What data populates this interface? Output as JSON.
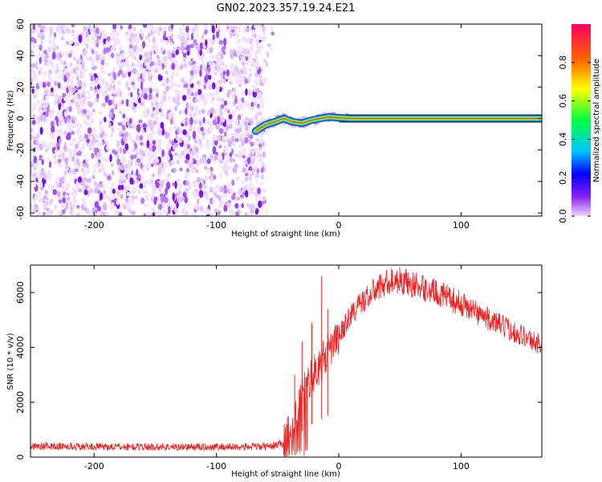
{
  "title": "GN02.2023.357.19.24.E21",
  "chart_data": [
    {
      "type": "heatmap",
      "xlabel": "Height of straight line (km)",
      "ylabel": "Frequency (Hz)",
      "xlim": [
        -252,
        166
      ],
      "ylim": [
        -62,
        60
      ],
      "xticks": [
        -200,
        -100,
        0,
        100
      ],
      "yticks": [
        -60,
        -40,
        -20,
        0,
        20,
        40,
        60
      ],
      "noise_region_x": [
        -252,
        -60
      ],
      "signal_track": [
        {
          "x": -68,
          "y": -8
        },
        {
          "x": -60,
          "y": -4
        },
        {
          "x": -52,
          "y": -2
        },
        {
          "x": -45,
          "y": 0
        },
        {
          "x": -38,
          "y": -2
        },
        {
          "x": -30,
          "y": -3
        },
        {
          "x": -22,
          "y": -1
        },
        {
          "x": -15,
          "y": 0
        },
        {
          "x": -8,
          "y": 1
        },
        {
          "x": 0,
          "y": 0.5
        },
        {
          "x": 10,
          "y": 0
        },
        {
          "x": 166,
          "y": 0
        }
      ],
      "colorbar": {
        "label": "Normalized spectral amplitude",
        "range": [
          0,
          1
        ],
        "ticks": [
          0.0,
          0.2,
          0.4,
          0.6,
          0.8
        ],
        "colors": [
          "#f0d8ff",
          "#7a00e0",
          "#0000ff",
          "#00d8ff",
          "#00ff40",
          "#ffff00",
          "#ff6000",
          "#ff0060"
        ]
      },
      "grid": false
    },
    {
      "type": "line",
      "xlabel": "Height of straight line (km)",
      "ylabel": "SNR (10 * v/v)",
      "xlim": [
        -252,
        166
      ],
      "ylim": [
        0,
        7000
      ],
      "xticks": [
        -200,
        -100,
        0,
        100
      ],
      "yticks": [
        0,
        2000,
        4000,
        6000
      ],
      "series_color": "#ee2222",
      "series": [
        {
          "x": [
            -252,
            -200,
            -150,
            -100,
            -60,
            -45,
            -38,
            -32,
            -25,
            -18,
            -10,
            0,
            10,
            20,
            30,
            40,
            50,
            60,
            70,
            80,
            90,
            100,
            110,
            120,
            130,
            140,
            150,
            160,
            166
          ],
          "values": [
            400,
            380,
            370,
            370,
            380,
            500,
            1200,
            2200,
            2800,
            3200,
            3700,
            4400,
            5200,
            5700,
            6100,
            6400,
            6450,
            6300,
            6150,
            6000,
            5800,
            5600,
            5350,
            5100,
            4850,
            4650,
            4450,
            4200,
            4100
          ],
          "spike_x": [
            -36,
            -30,
            -22,
            -14,
            -9
          ],
          "spike_y": [
            3000,
            4200,
            4900,
            6600,
            5400
          ]
        }
      ],
      "grid": false
    }
  ]
}
